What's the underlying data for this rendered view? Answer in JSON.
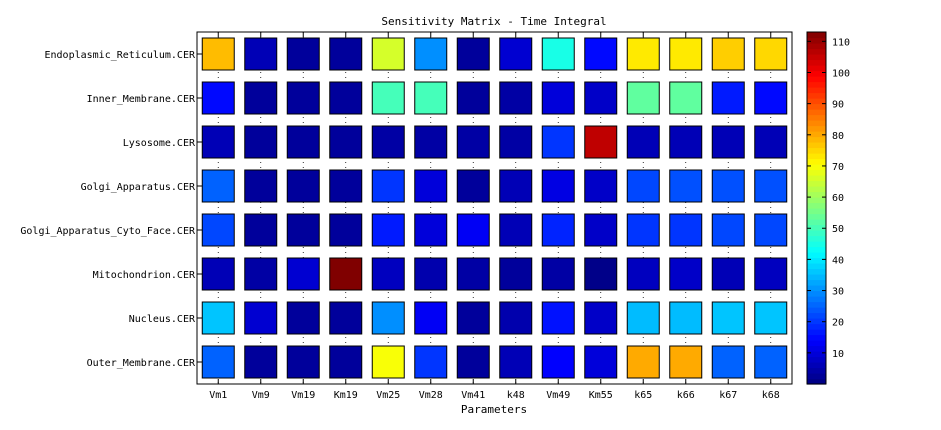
{
  "chart_data": {
    "type": "heatmap",
    "title": "Sensitivity Matrix - Time Integral",
    "xlabel": "Parameters",
    "ylabel": "",
    "x_categories": [
      "Vm1",
      "Vm9",
      "Vm19",
      "Km19",
      "Vm25",
      "Vm28",
      "Vm41",
      "k48",
      "Vm49",
      "Km55",
      "k65",
      "k66",
      "k67",
      "k68"
    ],
    "y_categories": [
      "Endoplasmic_Reticulum.CER",
      "Inner_Membrane.CER",
      "Lysosome.CER",
      "Golgi_Apparatus.CER",
      "Golgi_Apparatus_Cyto_Face.CER",
      "Mitochondrion.CER",
      "Nucleus.CER",
      "Outer_Membrane.CER"
    ],
    "values": [
      [
        78,
        6,
        3,
        3,
        66,
        30,
        3,
        9,
        45,
        15,
        73,
        73,
        76,
        75
      ],
      [
        15,
        3,
        3,
        3,
        50,
        50,
        3,
        4,
        10,
        8,
        53,
        53,
        17,
        15
      ],
      [
        6,
        3,
        3,
        3,
        4,
        4,
        4,
        4,
        20,
        106,
        6,
        6,
        6,
        6
      ],
      [
        25,
        3,
        3,
        3,
        20,
        10,
        3,
        6,
        11,
        8,
        22,
        23,
        23,
        23
      ],
      [
        22,
        3,
        3,
        3,
        17,
        10,
        13,
        6,
        18,
        8,
        20,
        20,
        22,
        22
      ],
      [
        6,
        4,
        9,
        113,
        7,
        5,
        4,
        3,
        4,
        1,
        7,
        8,
        6,
        7
      ],
      [
        36,
        9,
        3,
        3,
        30,
        13,
        3,
        5,
        16,
        8,
        35,
        35,
        36,
        36
      ],
      [
        25,
        3,
        3,
        3,
        70,
        20,
        3,
        6,
        14,
        10,
        80,
        80,
        25,
        25
      ]
    ],
    "colormap": "jet",
    "clim": [
      0,
      113
    ],
    "colorbar_ticks": [
      10,
      20,
      30,
      40,
      50,
      60,
      70,
      80,
      90,
      100,
      110
    ],
    "grid": "dotted vertical"
  }
}
